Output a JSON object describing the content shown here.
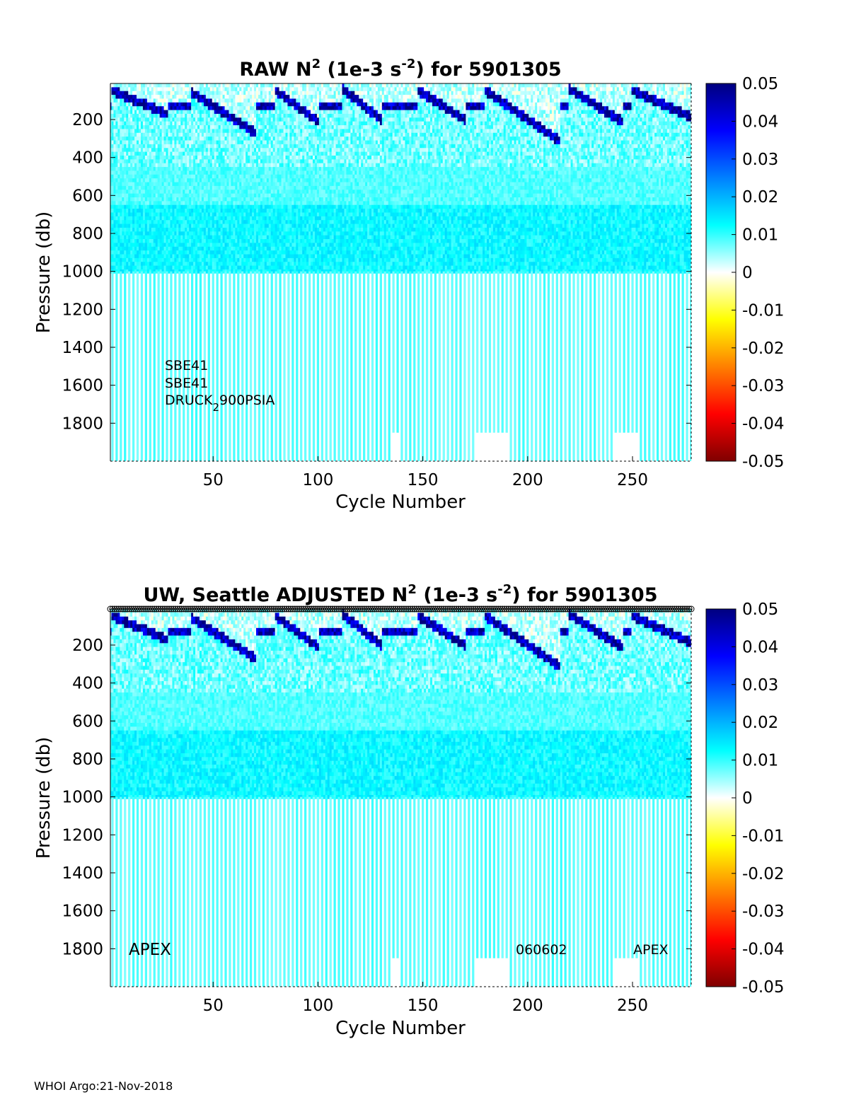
{
  "footer": "WHOI Argo:21-Nov-2018",
  "chart_data": [
    {
      "type": "heatmap",
      "panel": "raw",
      "title_prefix": "RAW N",
      "title_sup": "2",
      "title_mid": " (1e-3 s",
      "title_sup2": "-2",
      "title_suffix": ") for 5901305",
      "xlabel": "Cycle Number",
      "ylabel": "Pressure (db)",
      "xlim": [
        1,
        278
      ],
      "ylim": [
        2000,
        10
      ],
      "xticks": [
        50,
        100,
        150,
        200,
        250
      ],
      "yticks": [
        200,
        400,
        600,
        800,
        1000,
        1200,
        1400,
        1600,
        1800
      ],
      "colorbar": {
        "min": -0.05,
        "max": 0.05,
        "ticks": [
          "0.05",
          "0.04",
          "0.03",
          "0.02",
          "0.01",
          "0",
          "-0.01",
          "-0.02",
          "-0.03",
          "-0.04",
          "-0.05"
        ]
      },
      "annotations": {
        "sensor1": "SBE41",
        "sensor2": "SBE41",
        "sensor3_a": "DRUCK",
        "sensor3_sub": "2",
        "sensor3_b": "900PSIA"
      },
      "deep_profile_shallow_cycles": [
        136,
        137,
        138,
        176,
        177,
        178,
        179,
        180,
        181,
        182,
        183,
        184,
        185,
        186,
        187,
        188,
        189,
        190,
        191,
        242,
        243,
        244,
        245,
        246,
        247,
        248,
        249,
        250,
        251,
        252,
        253
      ],
      "stratification_bands": [
        {
          "start_cycle": 2,
          "end_cycle": 28,
          "mld_start": 40,
          "mld_end": 160
        },
        {
          "start_cycle": 40,
          "end_cycle": 70,
          "mld_start": 50,
          "mld_end": 260
        },
        {
          "start_cycle": 80,
          "end_cycle": 100,
          "mld_start": 40,
          "mld_end": 200
        },
        {
          "start_cycle": 112,
          "end_cycle": 130,
          "mld_start": 30,
          "mld_end": 190
        },
        {
          "start_cycle": 148,
          "end_cycle": 170,
          "mld_start": 40,
          "mld_end": 190
        },
        {
          "start_cycle": 180,
          "end_cycle": 215,
          "mld_start": 40,
          "mld_end": 300
        },
        {
          "start_cycle": 220,
          "end_cycle": 245,
          "mld_start": 30,
          "mld_end": 200
        },
        {
          "start_cycle": 250,
          "end_cycle": 278,
          "mld_start": 40,
          "mld_end": 180
        }
      ]
    },
    {
      "type": "heatmap",
      "panel": "adjusted",
      "title_prefix": "UW, Seattle  ADJUSTED N",
      "title_sup": "2",
      "title_mid": " (1e-3 s",
      "title_sup2": "-2",
      "title_suffix": ") for 5901305",
      "xlabel": "Cycle Number",
      "ylabel": "Pressure (db)",
      "xlim": [
        1,
        278
      ],
      "ylim": [
        2000,
        10
      ],
      "xticks": [
        50,
        100,
        150,
        200,
        250
      ],
      "yticks": [
        200,
        400,
        600,
        800,
        1000,
        1200,
        1400,
        1600,
        1800
      ],
      "colorbar": {
        "min": -0.05,
        "max": 0.05,
        "ticks": [
          "0.05",
          "0.04",
          "0.03",
          "0.02",
          "0.01",
          "0",
          "-0.01",
          "-0.02",
          "-0.03",
          "-0.04",
          "-0.05"
        ]
      },
      "annotations": {
        "left": "APEX",
        "mid": "060602",
        "right": "APEX"
      },
      "surface_markers": true
    }
  ]
}
